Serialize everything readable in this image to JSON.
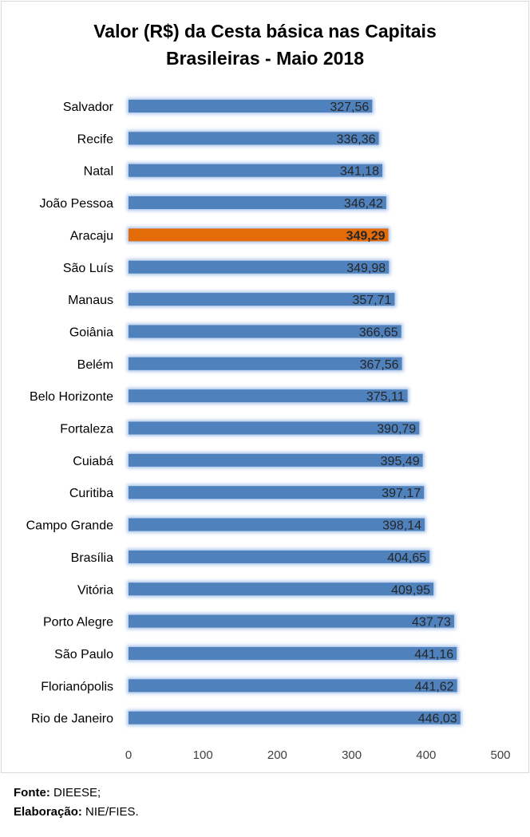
{
  "chart_data": {
    "type": "bar",
    "orientation": "horizontal",
    "title_lines": [
      "Valor (R$) da Cesta básica nas Capitais",
      "Brasileiras - Maio 2018"
    ],
    "categories": [
      "Salvador",
      "Recife",
      "Natal",
      "João Pessoa",
      "Aracaju",
      "São Luís",
      "Manaus",
      "Goiânia",
      "Belém",
      "Belo Horizonte",
      "Fortaleza",
      "Cuiabá",
      "Curitiba",
      "Campo Grande",
      "Brasília",
      "Vitória",
      "Porto Alegre",
      "São Paulo",
      "Florianópolis",
      "Rio de Janeiro"
    ],
    "values": [
      327.56,
      336.36,
      341.18,
      346.42,
      349.29,
      349.98,
      357.71,
      366.65,
      367.56,
      375.11,
      390.79,
      395.49,
      397.17,
      398.14,
      404.65,
      409.95,
      437.73,
      441.16,
      441.62,
      446.03
    ],
    "value_labels": [
      "327,56",
      "336,36",
      "341,18",
      "346,42",
      "349,29",
      "349,98",
      "357,71",
      "366,65",
      "367,56",
      "375,11",
      "390,79",
      "395,49",
      "397,17",
      "398,14",
      "404,65",
      "409,95",
      "437,73",
      "441,16",
      "441,62",
      "446,03"
    ],
    "highlight": "Aracaju",
    "xlim": [
      0,
      500
    ],
    "xticks": [
      0,
      100,
      200,
      300,
      400,
      500
    ],
    "xlabel": "",
    "ylabel": "",
    "grid": false,
    "legend": "none",
    "colors": {
      "bar": "#4f81bd",
      "highlight_bar": "#e36c09",
      "glow": "#a9c4ea"
    }
  },
  "footer": {
    "source_label": "Fonte:",
    "source_value": "DIEESE;",
    "prepared_label": "Elaboração:",
    "prepared_value": "NIE/FIES."
  }
}
